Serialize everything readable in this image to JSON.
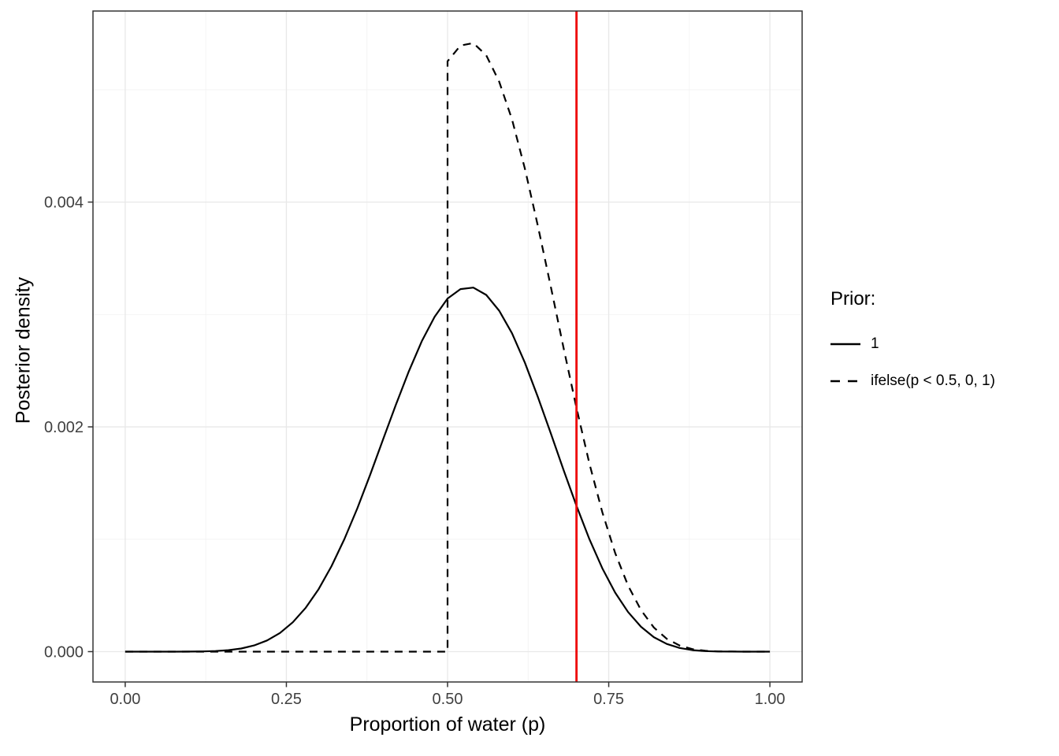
{
  "figure": {
    "x_axis": {
      "title": "Proportion of water (p)",
      "tick_labels": [
        "0.00",
        "0.25",
        "0.50",
        "0.75",
        "1.00"
      ],
      "tick_values": [
        0,
        0.25,
        0.5,
        0.75,
        1
      ]
    },
    "y_axis": {
      "title": "Posterior density",
      "tick_labels": [
        "0.000",
        "0.002",
        "0.004"
      ],
      "tick_values": [
        0,
        0.002,
        0.004
      ]
    },
    "legend": {
      "title": "Prior:",
      "items": [
        {
          "label": "1",
          "linetype": "solid"
        },
        {
          "label": "ifelse(p < 0.5, 0, 1)",
          "linetype": "dashed"
        }
      ]
    },
    "colors": {
      "curve": "#000000",
      "reference_line": "#ee0000",
      "grid_major": "#e8e8e8",
      "grid_minor": "#f3f3f3",
      "panel_border": "#333333",
      "tick_mark": "#333333",
      "tick_label": "#404040",
      "background": "#ffffff"
    }
  },
  "chart_data": {
    "type": "line",
    "title": "",
    "xlabel": "Proportion of water (p)",
    "ylabel": "Posterior density",
    "xlim": [
      -0.05,
      1.05
    ],
    "ylim": [
      -0.00027,
      0.0057
    ],
    "grid": true,
    "legend_position": "right",
    "legend_title": "Prior:",
    "reference_line_x": 0.7,
    "x_minor": [
      0.125,
      0.375,
      0.625,
      0.875
    ],
    "y_minor": [
      0.001,
      0.003,
      0.005
    ],
    "x": [
      0,
      0.02,
      0.04,
      0.06,
      0.08,
      0.1,
      0.12,
      0.14,
      0.16,
      0.18,
      0.2,
      0.22,
      0.24,
      0.26,
      0.28,
      0.3,
      0.32,
      0.34,
      0.36,
      0.38,
      0.4,
      0.42,
      0.44,
      0.46,
      0.48,
      0.5,
      0.52,
      0.54,
      0.56,
      0.58,
      0.6,
      0.62,
      0.64,
      0.66,
      0.68,
      0.7,
      0.72,
      0.74,
      0.76,
      0.78,
      0.8,
      0.82,
      0.84,
      0.86,
      0.88,
      0.9,
      0.92,
      0.94,
      0.96,
      0.98,
      1
    ],
    "series": [
      {
        "name": "1",
        "linetype": "solid",
        "values": [
          0,
          0,
          0,
          0,
          0,
          5e-07,
          1.8e-06,
          5.3e-06,
          1.3e-05,
          2.8e-05,
          5.5e-05,
          9.9e-05,
          0.000166,
          0.000261,
          0.00039,
          0.000556,
          0.00076,
          0.001002,
          0.001275,
          0.001574,
          0.001889,
          0.002198,
          0.002495,
          0.002762,
          0.002979,
          0.003142,
          0.003226,
          0.003239,
          0.003174,
          0.003034,
          0.002833,
          0.00257,
          0.002268,
          0.001945,
          0.001615,
          0.001298,
          0.001001,
          0.000742,
          0.000525,
          0.000352,
          0.000221,
          0.000129,
          6.84e-05,
          3.25e-05,
          1.33e-05,
          4.4e-06,
          1.1e-06,
          2e-07,
          0,
          0,
          0
        ]
      },
      {
        "name": "ifelse(p < 0.5, 0, 1)",
        "linetype": "dashed",
        "x": [
          0,
          0.1,
          0.2,
          0.3,
          0.4,
          0.48,
          0.5,
          0.5,
          0.52,
          0.54,
          0.56,
          0.58,
          0.6,
          0.62,
          0.64,
          0.66,
          0.68,
          0.7,
          0.72,
          0.74,
          0.76,
          0.78,
          0.8,
          0.82,
          0.84,
          0.86,
          0.88,
          0.9,
          0.92,
          0.94,
          0.96,
          0.98,
          1
        ],
        "values": [
          0,
          0,
          0,
          0,
          0,
          0,
          0,
          0.005253,
          0.005393,
          0.005415,
          0.005306,
          0.005072,
          0.004736,
          0.004296,
          0.003792,
          0.003252,
          0.0027,
          0.00217,
          0.001674,
          0.001241,
          0.000878,
          0.000588,
          0.00037,
          0.000215,
          0.000114,
          5.43e-05,
          2.22e-05,
          7.4e-06,
          1.8e-06,
          4e-07,
          0,
          0,
          0
        ]
      }
    ]
  }
}
